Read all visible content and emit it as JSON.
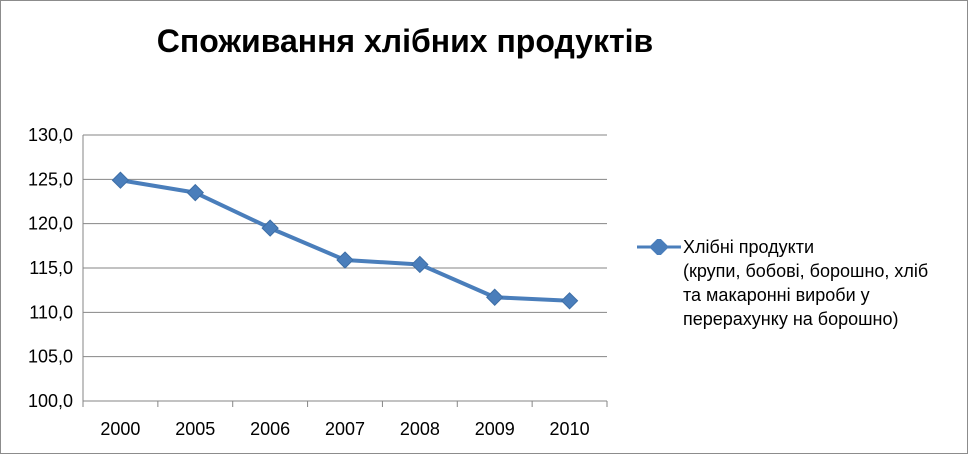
{
  "chart_data": {
    "type": "line",
    "title": "Споживання хлібних продуктів",
    "categories": [
      "2000",
      "2005",
      "2006",
      "2007",
      "2008",
      "2009",
      "2010"
    ],
    "series": [
      {
        "name": "Хлібні продукти (крупи, бобові, борошно, хліб та макаронні вироби у перерахунку на борошно)",
        "values": [
          124.9,
          123.5,
          119.5,
          115.9,
          115.4,
          111.7,
          111.3
        ],
        "color": "#4a7ebb"
      }
    ],
    "ylim": [
      100,
      130
    ],
    "yticks": [
      "100,0",
      "105,0",
      "110,0",
      "115,0",
      "120,0",
      "125,0",
      "130,0"
    ],
    "grid": true,
    "legend": "right"
  },
  "legend": {
    "line1": "Хлібні продукти",
    "line2": "(крупи, бобові, борошно, хліб",
    "line3": "та макаронні вироби у",
    "line4": "перерахунку на борошно)"
  }
}
